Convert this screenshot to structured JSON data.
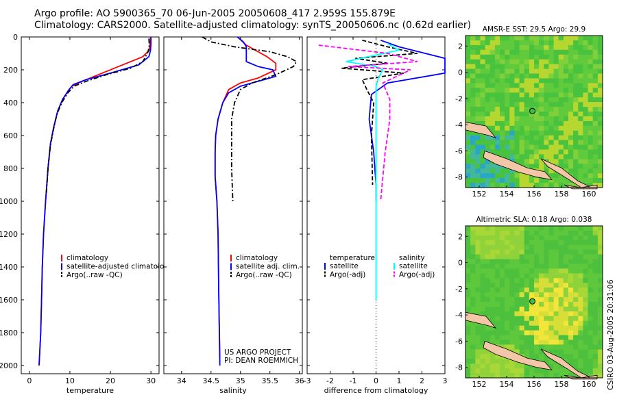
{
  "header": {
    "line1": "Argo profile: AO 5900365_70 06-Jun-2005 20050608_417 2.959S 155.879E",
    "line2": "Climatology: CARS2000. Satellite-adjusted climatology: synTS_20050606.nc (0.62d earlier)"
  },
  "colors": {
    "climatology": "#ff0000",
    "satellite": "#0000ff",
    "argo": "#000000",
    "sal_sat": "#00ffff",
    "sal_argo": "#ff00ff",
    "land": "#f2c6a6"
  },
  "chart_data": [
    {
      "type": "line",
      "panel": "temperature",
      "xlabel": "temperature",
      "ylabel": "",
      "xlim": [
        -2,
        32
      ],
      "ylim": [
        2050,
        0
      ],
      "y_inverted": true,
      "xticks": [
        0,
        10,
        20,
        30
      ],
      "yticks": [
        0,
        200,
        400,
        600,
        800,
        1000,
        1200,
        1400,
        1600,
        1800,
        2000
      ],
      "series": [
        {
          "name": "climatology",
          "style": "solid",
          "color": "#ff0000",
          "x": [
            29.9,
            29.8,
            29.6,
            28.0,
            22.0,
            17.0,
            13.0,
            10.5,
            9.5,
            8.2,
            7.0,
            6.0,
            5.2,
            4.6,
            4.0,
            3.5,
            3.2,
            3.0,
            2.8,
            2.6,
            2.4
          ],
          "y": [
            0,
            40,
            80,
            120,
            180,
            230,
            270,
            300,
            330,
            380,
            450,
            550,
            650,
            800,
            1000,
            1200,
            1400,
            1600,
            1800,
            1900,
            2000
          ]
        },
        {
          "name": "satellite-adjusted climatology",
          "style": "solid",
          "color": "#0000ff",
          "x": [
            30.0,
            30.0,
            29.9,
            29.5,
            27.0,
            20.0,
            14.0,
            10.8,
            9.8,
            8.2,
            7.0,
            6.0,
            5.2,
            4.6,
            4.0,
            3.5,
            3.2,
            3.0,
            2.8,
            2.6,
            2.4
          ],
          "y": [
            0,
            40,
            80,
            120,
            170,
            220,
            260,
            290,
            320,
            380,
            450,
            550,
            650,
            800,
            1000,
            1200,
            1400,
            1600,
            1800,
            1900,
            2000
          ]
        },
        {
          "name": "Argo(..raw -QC)",
          "style": "dashdot",
          "color": "#000000",
          "x": [
            29.5,
            29.6,
            29.3,
            28.0,
            25.0,
            19.0,
            14.0,
            11.0,
            9.5,
            8.0,
            6.8,
            5.9,
            5.2,
            4.6,
            4.2
          ],
          "y": [
            10,
            50,
            90,
            150,
            190,
            230,
            270,
            300,
            340,
            400,
            470,
            570,
            660,
            800,
            950
          ]
        }
      ],
      "legend": [
        "climatology",
        "satellite-adjusted climatology",
        "Argo(..raw -QC)"
      ]
    },
    {
      "type": "line",
      "panel": "salinity",
      "xlabel": "salinity",
      "ylabel": "",
      "xlim": [
        33.7,
        36.05
      ],
      "ylim": [
        2050,
        0
      ],
      "y_inverted": true,
      "xticks": [
        34,
        34.5,
        35,
        35.5,
        36
      ],
      "series": [
        {
          "name": "climatology",
          "style": "solid",
          "color": "#ff0000",
          "x": [
            34.95,
            35.1,
            35.3,
            35.45,
            35.6,
            35.6,
            35.3,
            35.0,
            34.8,
            34.7,
            34.62,
            34.58,
            34.57,
            34.57,
            34.6,
            34.62,
            34.63,
            34.64,
            34.65
          ],
          "y": [
            0,
            50,
            90,
            120,
            160,
            200,
            250,
            280,
            320,
            400,
            500,
            600,
            700,
            850,
            1000,
            1200,
            1500,
            1750,
            1950
          ]
        },
        {
          "name": "satellite adj. clim.",
          "style": "solid",
          "color": "#0000ff",
          "x": [
            34.95,
            35.05,
            35.1,
            35.1,
            35.1,
            35.3,
            35.55,
            35.6,
            35.3,
            35.0,
            34.8,
            34.7,
            34.62,
            34.58,
            34.57,
            34.57,
            34.6,
            34.62,
            34.63,
            34.64,
            34.65
          ],
          "y": [
            0,
            30,
            60,
            100,
            150,
            180,
            200,
            240,
            270,
            300,
            340,
            400,
            500,
            600,
            700,
            850,
            1000,
            1200,
            1500,
            1750,
            2000
          ]
        },
        {
          "name": "Argo(..raw -QC)",
          "style": "dashdot",
          "color": "#000000",
          "x": [
            34.35,
            34.5,
            34.9,
            35.5,
            35.8,
            35.95,
            35.9,
            35.6,
            35.2,
            35.0,
            34.9,
            34.85,
            34.85,
            34.85,
            34.87
          ],
          "y": [
            0,
            30,
            60,
            90,
            120,
            150,
            180,
            230,
            280,
            320,
            400,
            500,
            600,
            800,
            1000
          ]
        }
      ],
      "legend": [
        "climatology",
        "satellite adj. clim.",
        "Argo(..raw -QC)"
      ],
      "annotation": [
        "US ARGO PROJECT",
        "PI: DEAN ROEMMICH"
      ]
    },
    {
      "type": "line",
      "panel": "difference",
      "xlabel": "difference from climatology",
      "ylabel": "",
      "xlim": [
        -3,
        3
      ],
      "ylim": [
        2050,
        0
      ],
      "y_inverted": true,
      "xticks": [
        -3,
        -2,
        -1,
        0,
        1,
        2,
        3
      ],
      "zero_line": "dotted",
      "series": [
        {
          "name": "temperature satellite",
          "style": "solid",
          "color": "#0000ff",
          "x": [
            0.2,
            1.0,
            3.0,
            3.0,
            0.5,
            -0.2,
            -0.3,
            -0.1,
            0.0,
            0.0
          ],
          "y": [
            20,
            60,
            130,
            220,
            280,
            350,
            500,
            700,
            900,
            1000
          ]
        },
        {
          "name": "temperature Argo(-adj)",
          "style": "dashed",
          "color": "#000000",
          "x": [
            -0.6,
            0.5,
            1.8,
            -0.9,
            0.5,
            -1.5,
            1.2,
            -0.6,
            -0.4,
            -0.1,
            -0.2,
            -0.15
          ],
          "y": [
            20,
            60,
            100,
            130,
            160,
            190,
            220,
            260,
            320,
            400,
            600,
            900
          ]
        },
        {
          "name": "salinity satellite",
          "style": "solid",
          "color": "#00ffff",
          "x": [
            0.5,
            1.0,
            0.0,
            -1.3,
            0.0,
            0.3,
            0.1,
            0.0,
            0.0,
            0.0,
            0.0,
            0.0
          ],
          "y": [
            40,
            80,
            110,
            150,
            180,
            200,
            250,
            300,
            500,
            900,
            1400,
            1600
          ]
        },
        {
          "name": "salinity Argo(-adj)",
          "style": "dashed",
          "color": "#ff00ff",
          "x": [
            -2.5,
            0.5,
            1.8,
            -1.2,
            1.5,
            0.3,
            0.6,
            0.6,
            0.5,
            0.4,
            0.3,
            0.2
          ],
          "y": [
            50,
            100,
            150,
            180,
            200,
            280,
            380,
            500,
            600,
            700,
            850,
            1000
          ]
        }
      ],
      "legend": [
        "temperature",
        "satellite",
        "Argo(-adj)",
        "salinity",
        "satellite",
        "Argo(-adj)"
      ]
    },
    {
      "type": "heatmap",
      "panel": "sst_map",
      "title": "AMSR-E SST: 29.5 Argo: 29.9",
      "xlim": [
        151,
        161
      ],
      "ylim": [
        -8.8,
        2.8
      ],
      "xticks": [
        152,
        154,
        156,
        158,
        160
      ],
      "yticks": [
        2,
        0,
        -2,
        -4,
        -6,
        -8
      ],
      "argo_position": [
        155.879,
        -2.959
      ]
    },
    {
      "type": "heatmap",
      "panel": "sla_map",
      "title": "Altimetric SLA: 0.18 Argo: 0.038",
      "xlim": [
        151,
        161
      ],
      "ylim": [
        -8.8,
        2.8
      ],
      "xticks": [
        152,
        154,
        156,
        158,
        160
      ],
      "yticks": [
        2,
        0,
        -2,
        -4,
        -6,
        -8
      ],
      "argo_position": [
        155.879,
        -2.959
      ]
    }
  ],
  "footer": {
    "credit": "CSIRO 03-Aug-2005 20:31:06"
  }
}
